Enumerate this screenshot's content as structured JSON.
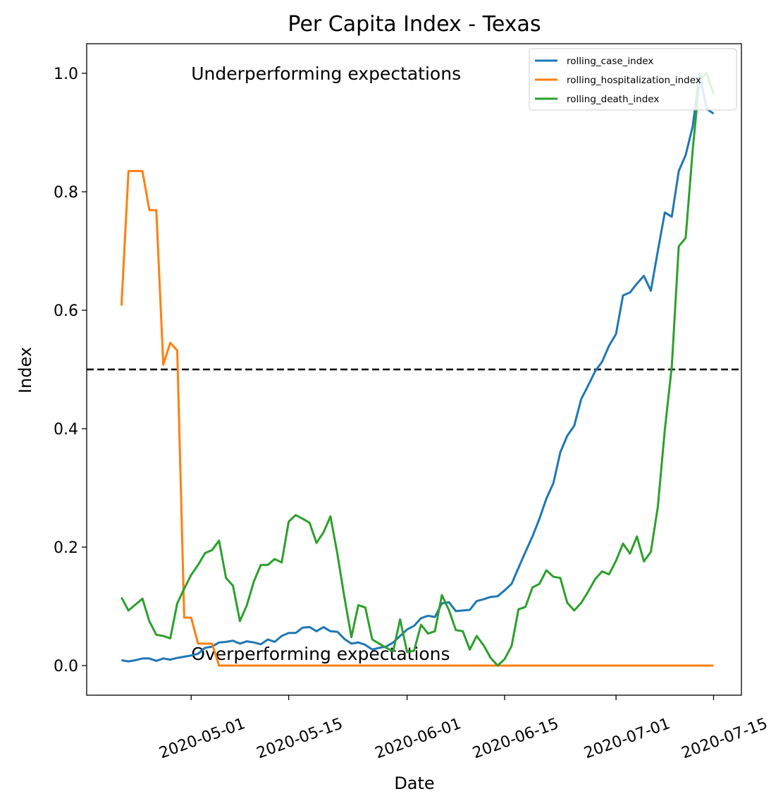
{
  "chart_data": {
    "type": "line",
    "title": "Per Capita Index - Texas",
    "xlabel": "Date",
    "ylabel": "Index",
    "x_range": [
      "2020-04-16",
      "2020-07-19"
    ],
    "ylim": [
      -0.05,
      1.05
    ],
    "xticks": [
      "2020-05-01",
      "2020-05-15",
      "2020-06-01",
      "2020-06-15",
      "2020-07-01",
      "2020-07-15"
    ],
    "yticks": [
      0.0,
      0.2,
      0.4,
      0.6,
      0.8,
      1.0
    ],
    "ytick_labels": [
      "0.0",
      "0.2",
      "0.4",
      "0.6",
      "0.8",
      "1.0"
    ],
    "grid": false,
    "legend_position": "top-right",
    "reference_line": {
      "y": 0.5,
      "style": "dashed",
      "color": "#000000"
    },
    "annotations": [
      {
        "text": "Underperforming expectations",
        "x": "2020-05-01",
        "y": 1.0
      },
      {
        "text": "Overperforming expectations",
        "x": "2020-05-01",
        "y": 0.02
      }
    ],
    "series": [
      {
        "name": "rolling_case_index",
        "color": "#1f77b4",
        "points": [
          [
            "2020-04-21",
            0.009
          ],
          [
            "2020-04-22",
            0.007
          ],
          [
            "2020-04-23",
            0.009
          ],
          [
            "2020-04-24",
            0.012
          ],
          [
            "2020-04-25",
            0.012
          ],
          [
            "2020-04-26",
            0.008
          ],
          [
            "2020-04-27",
            0.012
          ],
          [
            "2020-04-28",
            0.01
          ],
          [
            "2020-04-29",
            0.013
          ],
          [
            "2020-04-30",
            0.015
          ],
          [
            "2020-05-01",
            0.017
          ],
          [
            "2020-05-02",
            0.02
          ],
          [
            "2020-05-03",
            0.03
          ],
          [
            "2020-05-04",
            0.032
          ],
          [
            "2020-05-05",
            0.039
          ],
          [
            "2020-05-06",
            0.04
          ],
          [
            "2020-05-07",
            0.042
          ],
          [
            "2020-05-08",
            0.037
          ],
          [
            "2020-05-09",
            0.041
          ],
          [
            "2020-05-10",
            0.039
          ],
          [
            "2020-05-11",
            0.036
          ],
          [
            "2020-05-12",
            0.044
          ],
          [
            "2020-05-13",
            0.04
          ],
          [
            "2020-05-14",
            0.05
          ],
          [
            "2020-05-15",
            0.055
          ],
          [
            "2020-05-16",
            0.055
          ],
          [
            "2020-05-17",
            0.064
          ],
          [
            "2020-05-18",
            0.065
          ],
          [
            "2020-05-19",
            0.058
          ],
          [
            "2020-05-20",
            0.065
          ],
          [
            "2020-05-21",
            0.058
          ],
          [
            "2020-05-22",
            0.057
          ],
          [
            "2020-05-23",
            0.045
          ],
          [
            "2020-05-24",
            0.037
          ],
          [
            "2020-05-25",
            0.039
          ],
          [
            "2020-05-26",
            0.035
          ],
          [
            "2020-05-27",
            0.027
          ],
          [
            "2020-05-28",
            0.03
          ],
          [
            "2020-05-29",
            0.032
          ],
          [
            "2020-05-30",
            0.039
          ],
          [
            "2020-05-31",
            0.05
          ],
          [
            "2020-06-01",
            0.061
          ],
          [
            "2020-06-02",
            0.067
          ],
          [
            "2020-06-03",
            0.08
          ],
          [
            "2020-06-04",
            0.084
          ],
          [
            "2020-06-05",
            0.082
          ],
          [
            "2020-06-06",
            0.105
          ],
          [
            "2020-06-07",
            0.107
          ],
          [
            "2020-06-08",
            0.092
          ],
          [
            "2020-06-09",
            0.093
          ],
          [
            "2020-06-10",
            0.094
          ],
          [
            "2020-06-11",
            0.109
          ],
          [
            "2020-06-12",
            0.112
          ],
          [
            "2020-06-13",
            0.116
          ],
          [
            "2020-06-14",
            0.117
          ],
          [
            "2020-06-15",
            0.127
          ],
          [
            "2020-06-16",
            0.138
          ],
          [
            "2020-06-17",
            0.165
          ],
          [
            "2020-06-18",
            0.192
          ],
          [
            "2020-06-19",
            0.218
          ],
          [
            "2020-06-20",
            0.248
          ],
          [
            "2020-06-21",
            0.282
          ],
          [
            "2020-06-22",
            0.308
          ],
          [
            "2020-06-23",
            0.36
          ],
          [
            "2020-06-24",
            0.388
          ],
          [
            "2020-06-25",
            0.405
          ],
          [
            "2020-06-26",
            0.45
          ],
          [
            "2020-06-27",
            0.473
          ],
          [
            "2020-06-28",
            0.497
          ],
          [
            "2020-06-29",
            0.513
          ],
          [
            "2020-06-30",
            0.54
          ],
          [
            "2020-07-01",
            0.56
          ],
          [
            "2020-07-02",
            0.625
          ],
          [
            "2020-07-03",
            0.63
          ],
          [
            "2020-07-04",
            0.645
          ],
          [
            "2020-07-05",
            0.658
          ],
          [
            "2020-07-06",
            0.633
          ],
          [
            "2020-07-07",
            0.7
          ],
          [
            "2020-07-08",
            0.765
          ],
          [
            "2020-07-09",
            0.758
          ],
          [
            "2020-07-10",
            0.835
          ],
          [
            "2020-07-11",
            0.862
          ],
          [
            "2020-07-12",
            0.91
          ],
          [
            "2020-07-13",
            1.0
          ],
          [
            "2020-07-14",
            0.94
          ],
          [
            "2020-07-15",
            0.932
          ]
        ]
      },
      {
        "name": "rolling_hospitalization_index",
        "color": "#ff7f0e",
        "points": [
          [
            "2020-04-21",
            0.608
          ],
          [
            "2020-04-22",
            0.835
          ],
          [
            "2020-04-23",
            0.835
          ],
          [
            "2020-04-24",
            0.835
          ],
          [
            "2020-04-25",
            0.769
          ],
          [
            "2020-04-26",
            0.769
          ],
          [
            "2020-04-27",
            0.508
          ],
          [
            "2020-04-28",
            0.545
          ],
          [
            "2020-04-29",
            0.532
          ],
          [
            "2020-04-30",
            0.081
          ],
          [
            "2020-05-01",
            0.081
          ],
          [
            "2020-05-02",
            0.037
          ],
          [
            "2020-05-03",
            0.037
          ],
          [
            "2020-05-04",
            0.037
          ],
          [
            "2020-05-05",
            0.0
          ],
          [
            "2020-05-10",
            0.0
          ],
          [
            "2020-05-20",
            0.0
          ],
          [
            "2020-06-01",
            0.0
          ],
          [
            "2020-06-15",
            0.0
          ],
          [
            "2020-07-01",
            0.0
          ],
          [
            "2020-07-15",
            0.0
          ]
        ]
      },
      {
        "name": "rolling_death_index",
        "color": "#2ca02c",
        "points": [
          [
            "2020-04-21",
            0.115
          ],
          [
            "2020-04-22",
            0.093
          ],
          [
            "2020-04-23",
            0.103
          ],
          [
            "2020-04-24",
            0.113
          ],
          [
            "2020-04-25",
            0.075
          ],
          [
            "2020-04-26",
            0.052
          ],
          [
            "2020-04-27",
            0.05
          ],
          [
            "2020-04-28",
            0.046
          ],
          [
            "2020-04-29",
            0.105
          ],
          [
            "2020-04-30",
            0.13
          ],
          [
            "2020-05-01",
            0.153
          ],
          [
            "2020-05-02",
            0.17
          ],
          [
            "2020-05-03",
            0.19
          ],
          [
            "2020-05-04",
            0.195
          ],
          [
            "2020-05-05",
            0.211
          ],
          [
            "2020-05-06",
            0.148
          ],
          [
            "2020-05-07",
            0.135
          ],
          [
            "2020-05-08",
            0.075
          ],
          [
            "2020-05-09",
            0.102
          ],
          [
            "2020-05-10",
            0.142
          ],
          [
            "2020-05-11",
            0.17
          ],
          [
            "2020-05-12",
            0.17
          ],
          [
            "2020-05-13",
            0.18
          ],
          [
            "2020-05-14",
            0.174
          ],
          [
            "2020-05-15",
            0.243
          ],
          [
            "2020-05-16",
            0.254
          ],
          [
            "2020-05-17",
            0.248
          ],
          [
            "2020-05-18",
            0.241
          ],
          [
            "2020-05-19",
            0.207
          ],
          [
            "2020-05-20",
            0.225
          ],
          [
            "2020-05-21",
            0.252
          ],
          [
            "2020-05-22",
            0.188
          ],
          [
            "2020-05-23",
            0.115
          ],
          [
            "2020-05-24",
            0.048
          ],
          [
            "2020-05-25",
            0.102
          ],
          [
            "2020-05-26",
            0.098
          ],
          [
            "2020-05-27",
            0.044
          ],
          [
            "2020-05-28",
            0.037
          ],
          [
            "2020-05-29",
            0.03
          ],
          [
            "2020-05-30",
            0.024
          ],
          [
            "2020-05-31",
            0.078
          ],
          [
            "2020-06-01",
            0.023
          ],
          [
            "2020-06-02",
            0.025
          ],
          [
            "2020-06-03",
            0.069
          ],
          [
            "2020-06-04",
            0.054
          ],
          [
            "2020-06-05",
            0.058
          ],
          [
            "2020-06-06",
            0.119
          ],
          [
            "2020-06-07",
            0.094
          ],
          [
            "2020-06-08",
            0.06
          ],
          [
            "2020-06-09",
            0.058
          ],
          [
            "2020-06-10",
            0.027
          ],
          [
            "2020-06-11",
            0.05
          ],
          [
            "2020-06-12",
            0.034
          ],
          [
            "2020-06-13",
            0.013
          ],
          [
            "2020-06-14",
            0.0
          ],
          [
            "2020-06-15",
            0.011
          ],
          [
            "2020-06-16",
            0.033
          ],
          [
            "2020-06-17",
            0.095
          ],
          [
            "2020-06-18",
            0.099
          ],
          [
            "2020-06-19",
            0.132
          ],
          [
            "2020-06-20",
            0.138
          ],
          [
            "2020-06-21",
            0.161
          ],
          [
            "2020-06-22",
            0.15
          ],
          [
            "2020-06-23",
            0.148
          ],
          [
            "2020-06-24",
            0.106
          ],
          [
            "2020-06-25",
            0.093
          ],
          [
            "2020-06-26",
            0.106
          ],
          [
            "2020-06-27",
            0.125
          ],
          [
            "2020-06-28",
            0.146
          ],
          [
            "2020-06-29",
            0.159
          ],
          [
            "2020-06-30",
            0.154
          ],
          [
            "2020-07-01",
            0.177
          ],
          [
            "2020-07-02",
            0.206
          ],
          [
            "2020-07-03",
            0.189
          ],
          [
            "2020-07-04",
            0.218
          ],
          [
            "2020-07-05",
            0.176
          ],
          [
            "2020-07-06",
            0.192
          ],
          [
            "2020-07-07",
            0.268
          ],
          [
            "2020-07-08",
            0.398
          ],
          [
            "2020-07-09",
            0.505
          ],
          [
            "2020-07-10",
            0.708
          ],
          [
            "2020-07-11",
            0.722
          ],
          [
            "2020-07-12",
            0.87
          ],
          [
            "2020-07-13",
            0.99
          ],
          [
            "2020-07-14",
            1.0
          ],
          [
            "2020-07-15",
            0.965
          ]
        ]
      }
    ]
  }
}
